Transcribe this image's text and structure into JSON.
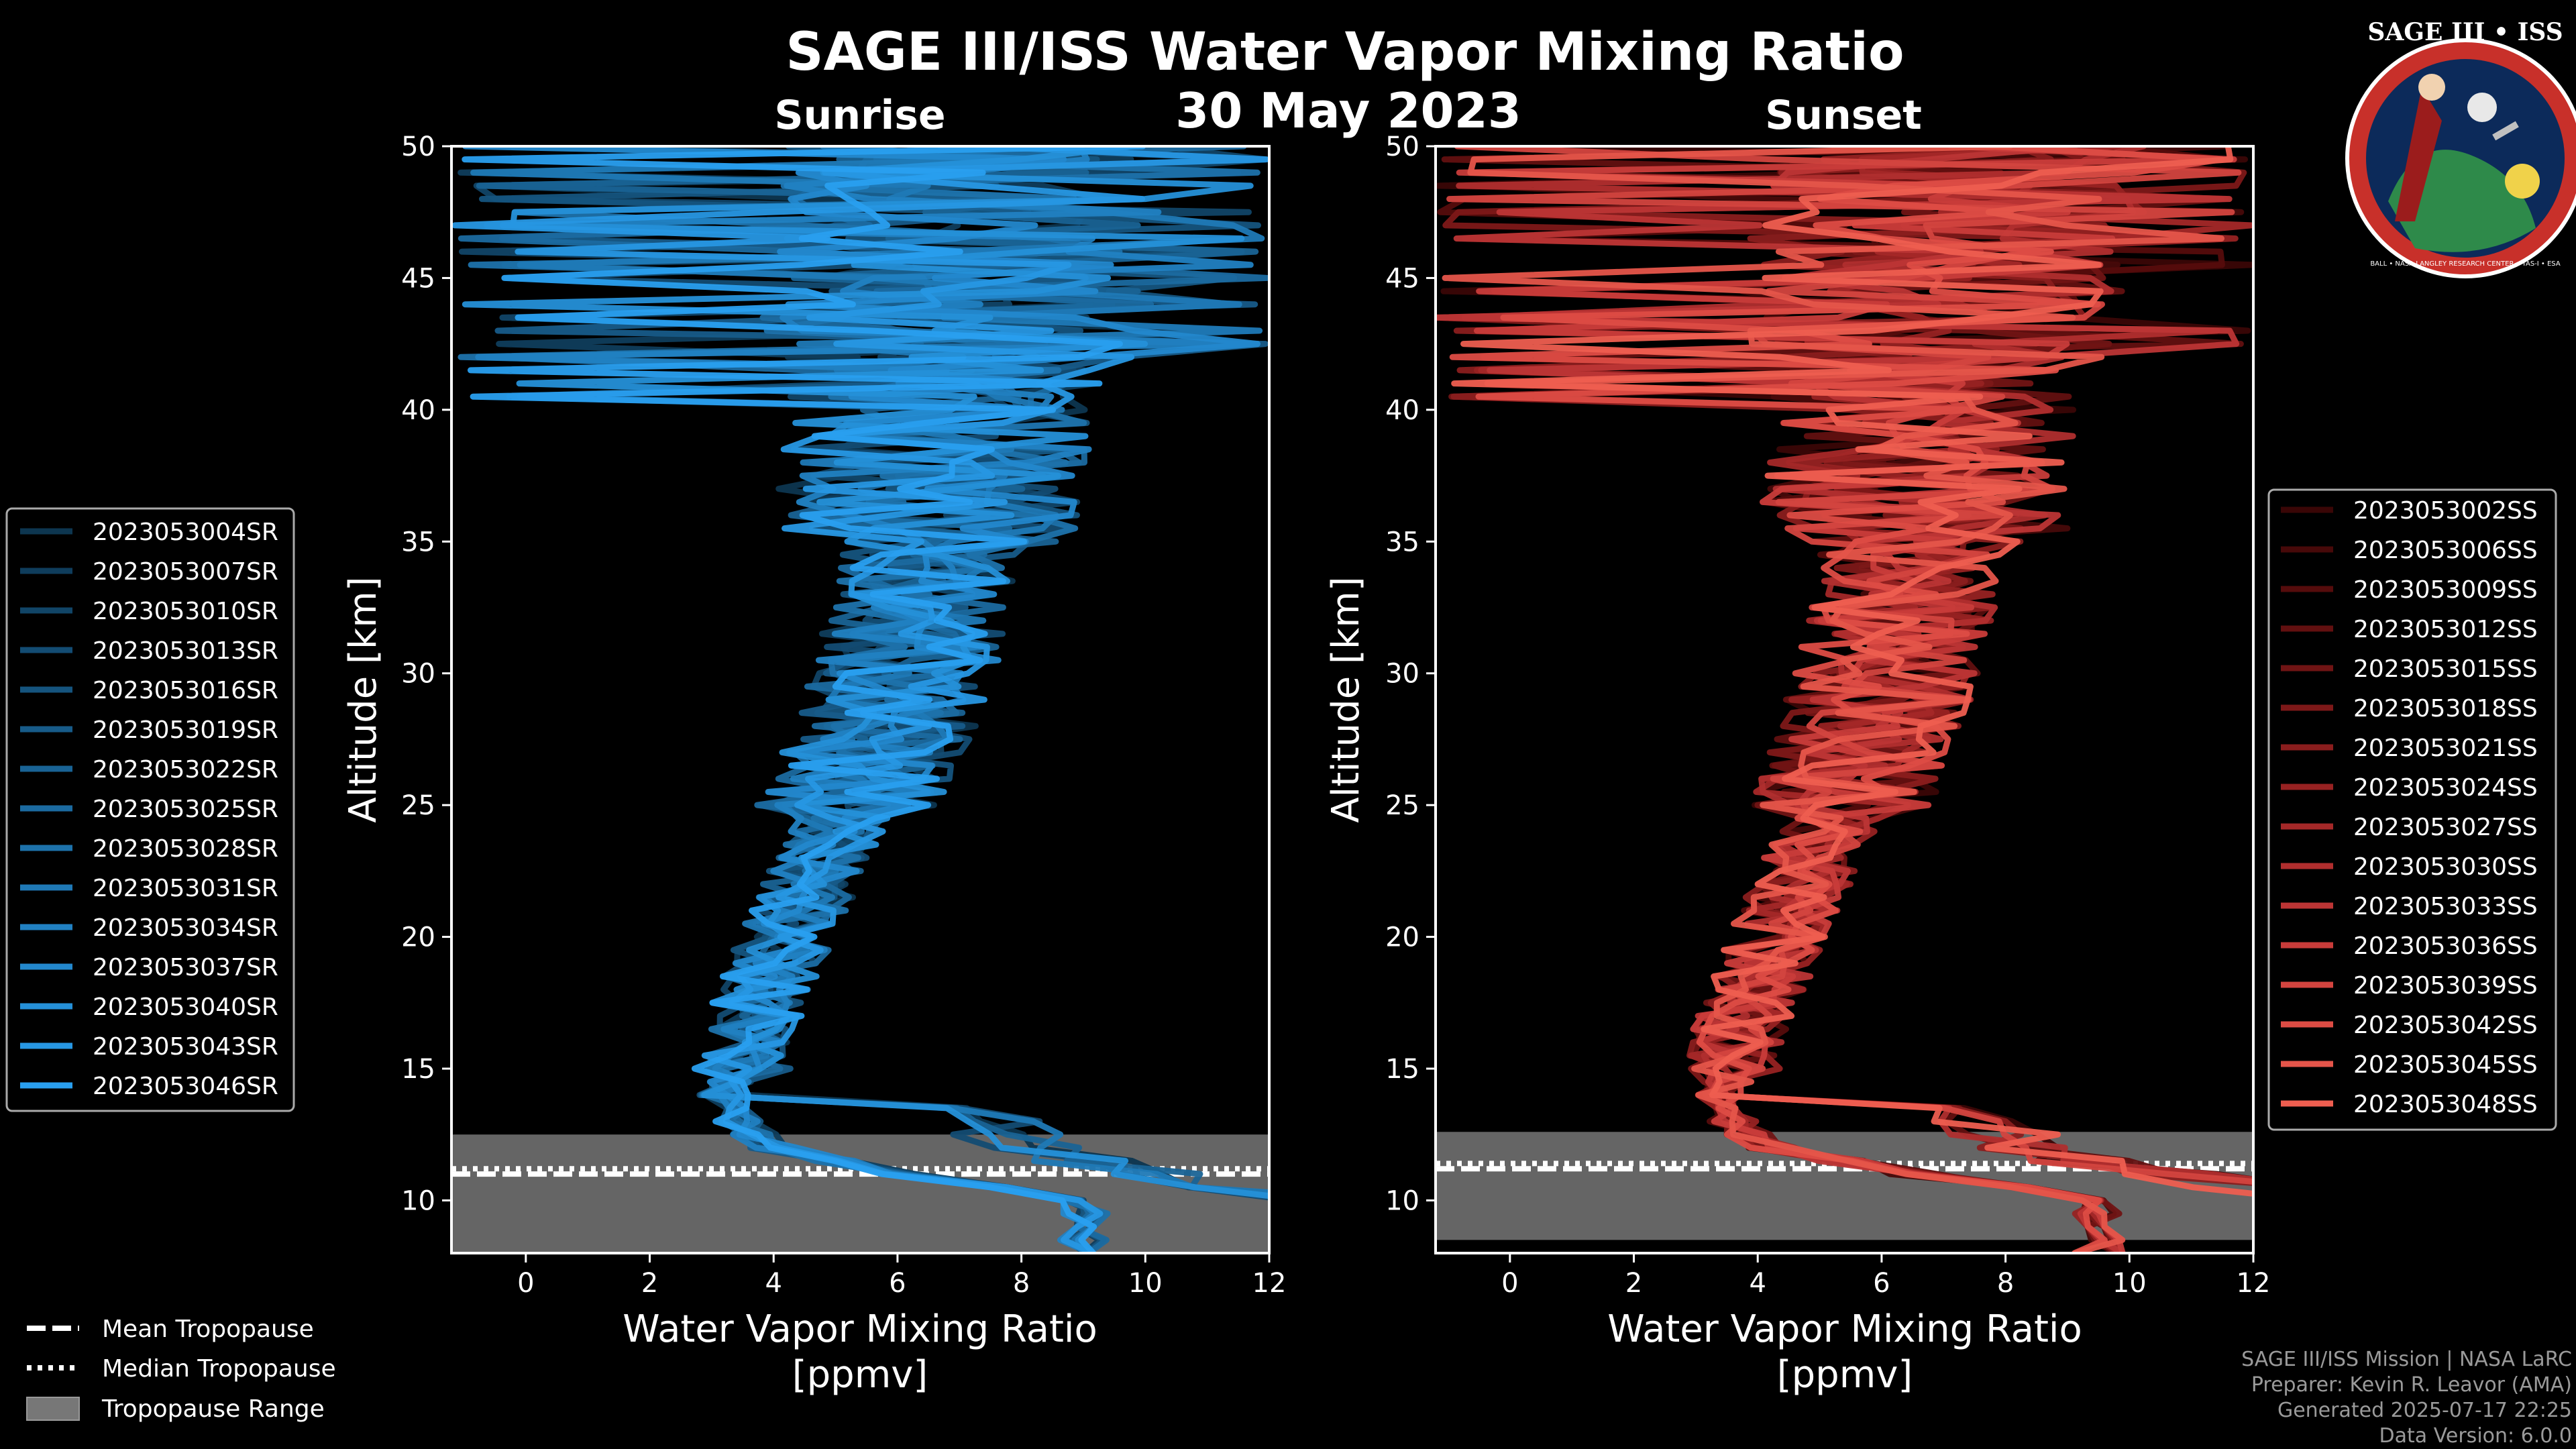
{
  "title": "SAGE III/ISS Water Vapor Mixing Ratio",
  "date": "30 May 2023",
  "colors": {
    "sunrise": "#1f8fcc",
    "sunset": "#e8584a",
    "tropopause_fill": "#777777",
    "background": "#000000"
  },
  "chart_data": [
    {
      "type": "line",
      "panel": "sunrise",
      "title": "Sunrise",
      "xlabel": "Water Vapor Mixing Ratio [ppmv]",
      "xlabel_line1": "Water Vapor Mixing Ratio",
      "xlabel_line2": "[ppmv]",
      "ylabel": "Altitude [km]",
      "xlim": [
        -1.2,
        12
      ],
      "ylim": [
        8,
        50
      ],
      "xticks": [
        0,
        2,
        4,
        6,
        8,
        10,
        12
      ],
      "yticks": [
        10,
        15,
        20,
        25,
        30,
        35,
        40,
        45,
        50
      ],
      "tropopause": {
        "mean": 11.0,
        "median": 11.2,
        "range": [
          8,
          12.5
        ]
      },
      "legend_position": "left",
      "series_names": [
        "2023053004SR",
        "2023053007SR",
        "2023053010SR",
        "2023053013SR",
        "2023053016SR",
        "2023053019SR",
        "2023053022SR",
        "2023053025SR",
        "2023053028SR",
        "2023053031SR",
        "2023053034SR",
        "2023053037SR",
        "2023053040SR",
        "2023053043SR",
        "2023053046SR"
      ],
      "series_colors": [
        "#0d3650",
        "#0f3d5c",
        "#114567",
        "#134c73",
        "#15547e",
        "#175b89",
        "#196395",
        "#1b6aa0",
        "#1d72ab",
        "#1f79b6",
        "#2181c2",
        "#2388cd",
        "#2590d8",
        "#2797e3",
        "#299fef"
      ],
      "profile": [
        {
          "alt": 10,
          "ppmv": 9.0
        },
        {
          "alt": 11,
          "ppmv": 6.0
        },
        {
          "alt": 12,
          "ppmv": 4.0
        },
        {
          "alt": 13,
          "ppmv": 3.4
        },
        {
          "alt": 14,
          "ppmv": 3.2
        },
        {
          "alt": 15,
          "ppmv": 3.5
        },
        {
          "alt": 17,
          "ppmv": 3.7
        },
        {
          "alt": 20,
          "ppmv": 4.2
        },
        {
          "alt": 22,
          "ppmv": 4.6
        },
        {
          "alt": 25,
          "ppmv": 5.2
        },
        {
          "alt": 28,
          "ppmv": 5.8
        },
        {
          "alt": 30,
          "ppmv": 6.1
        },
        {
          "alt": 32,
          "ppmv": 6.3
        },
        {
          "alt": 35,
          "ppmv": 6.5
        },
        {
          "alt": 38,
          "ppmv": 6.6
        },
        {
          "alt": 40,
          "ppmv": 6.7
        },
        {
          "alt": 43,
          "ppmv": 6.9
        },
        {
          "alt": 46,
          "ppmv": 7.0
        },
        {
          "alt": 50,
          "ppmv": 7.2
        }
      ],
      "profile_noise_ppmv": [
        0.4,
        0.8,
        1.5,
        2.5,
        3.2
      ]
    },
    {
      "type": "line",
      "panel": "sunset",
      "title": "Sunset",
      "xlabel": "Water Vapor Mixing Ratio [ppmv]",
      "xlabel_line1": "Water Vapor Mixing Ratio",
      "xlabel_line2": "[ppmv]",
      "ylabel": "Altitude [km]",
      "xlim": [
        -1.2,
        12
      ],
      "ylim": [
        8,
        50
      ],
      "xticks": [
        0,
        2,
        4,
        6,
        8,
        10,
        12
      ],
      "yticks": [
        10,
        15,
        20,
        25,
        30,
        35,
        40,
        45,
        50
      ],
      "tropopause": {
        "mean": 11.2,
        "median": 11.4,
        "range": [
          8.5,
          12.6
        ]
      },
      "legend_position": "right",
      "series_names": [
        "2023053002SS",
        "2023053006SS",
        "2023053009SS",
        "2023053012SS",
        "2023053015SS",
        "2023053018SS",
        "2023053021SS",
        "2023053024SS",
        "2023053027SS",
        "2023053030SS",
        "2023053033SS",
        "2023053036SS",
        "2023053039SS",
        "2023053042SS",
        "2023053045SS",
        "2023053048SS"
      ],
      "series_colors": [
        "#3a0606",
        "#470909",
        "#550c0c",
        "#621010",
        "#701414",
        "#7d1818",
        "#8a1d1d",
        "#972222",
        "#a42828",
        "#b02e2e",
        "#bc3535",
        "#c83c3a",
        "#d3443f",
        "#dd4c44",
        "#e5554a",
        "#ee5e50"
      ],
      "profile": [
        {
          "alt": 10,
          "ppmv": 9.5
        },
        {
          "alt": 11,
          "ppmv": 6.5
        },
        {
          "alt": 12,
          "ppmv": 4.2
        },
        {
          "alt": 13,
          "ppmv": 3.6
        },
        {
          "alt": 14,
          "ppmv": 3.4
        },
        {
          "alt": 15,
          "ppmv": 3.6
        },
        {
          "alt": 17,
          "ppmv": 3.8
        },
        {
          "alt": 20,
          "ppmv": 4.3
        },
        {
          "alt": 22,
          "ppmv": 4.7
        },
        {
          "alt": 25,
          "ppmv": 5.3
        },
        {
          "alt": 28,
          "ppmv": 5.8
        },
        {
          "alt": 30,
          "ppmv": 6.1
        },
        {
          "alt": 32,
          "ppmv": 6.3
        },
        {
          "alt": 35,
          "ppmv": 6.5
        },
        {
          "alt": 38,
          "ppmv": 6.6
        },
        {
          "alt": 40,
          "ppmv": 6.7
        },
        {
          "alt": 43,
          "ppmv": 6.9
        },
        {
          "alt": 46,
          "ppmv": 7.0
        },
        {
          "alt": 50,
          "ppmv": 7.2
        }
      ],
      "profile_noise_ppmv": [
        0.4,
        0.8,
        1.5,
        2.5,
        3.2
      ]
    }
  ],
  "tropopause_legend": {
    "mean": "Mean Tropopause",
    "median": "Median Tropopause",
    "range": "Tropopause Range"
  },
  "footer": {
    "line1": "SAGE III/ISS Mission | NASA LaRC",
    "line2": "Preparer: Kevin R. Leavor (AMA)",
    "line3": "Generated 2025-07-17 22:25",
    "line4": "Data Version: 6.0.0"
  },
  "logo": {
    "title": "SAGE III • ISS",
    "ring_text": "BALL • NASA LANGLEY RESEARCH CENTER • TAS-I • ESA"
  }
}
